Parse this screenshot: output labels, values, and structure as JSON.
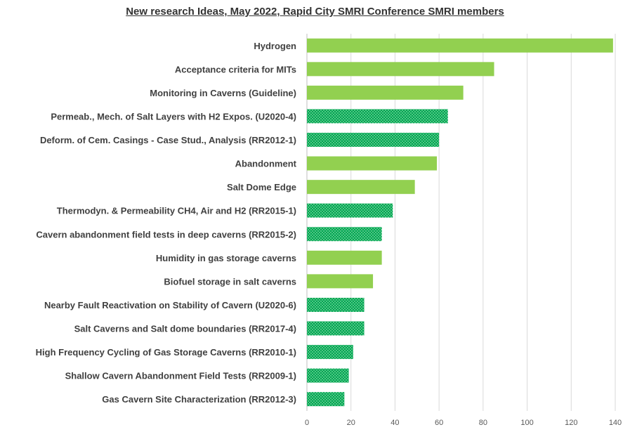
{
  "chart_data": {
    "type": "bar",
    "orientation": "horizontal",
    "title": "New research Ideas, May 2022, Rapid City SMRI Conference SMRI members",
    "xlabel": "",
    "ylabel": "",
    "xlim": [
      0,
      140
    ],
    "xticks": [
      0,
      20,
      40,
      60,
      80,
      100,
      120,
      140
    ],
    "grid": "vertical",
    "colors": {
      "solid": "#92d050",
      "pattern": "#00b050"
    },
    "categories": [
      "Hydrogen",
      "Acceptance criteria for MITs",
      "Monitoring in Caverns (Guideline)",
      "Permeab., Mech. of Salt Layers with H2 Expos. (U2020-4)",
      "Deform. of Cem. Casings - Case Stud., Analysis (RR2012-1)",
      "Abandonment",
      "Salt Dome Edge",
      "Thermodyn. & Permeability CH4, Air and H2 (RR2015-1)",
      "Cavern abandonment field tests in deep caverns (RR2015-2)",
      "Humidity in gas storage caverns",
      "Biofuel storage in salt caverns",
      "Nearby Fault Reactivation on Stability of Cavern (U2020-6)",
      "Salt Caverns and Salt dome boundaries (RR2017-4)",
      "High Frequency Cycling of Gas Storage Caverns (RR2010-1)",
      "Shallow Cavern Abandonment Field Tests (RR2009-1)",
      "Gas Cavern Site Characterization (RR2012-3)"
    ],
    "values": [
      139,
      85,
      71,
      64,
      60,
      59,
      49,
      39,
      34,
      34,
      30,
      26,
      26,
      21,
      19,
      17
    ],
    "styles": [
      "solid",
      "solid",
      "solid",
      "pattern",
      "pattern",
      "solid",
      "solid",
      "pattern",
      "pattern",
      "solid",
      "solid",
      "pattern",
      "pattern",
      "pattern",
      "pattern",
      "pattern"
    ]
  }
}
